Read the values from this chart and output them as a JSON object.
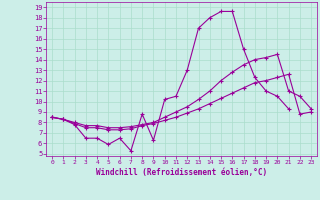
{
  "xlabel": "Windchill (Refroidissement éolien,°C)",
  "background_color": "#cceee8",
  "grid_color": "#aaddcc",
  "line_color": "#990099",
  "xlim": [
    -0.5,
    23.5
  ],
  "ylim": [
    4.8,
    19.5
  ],
  "xticks": [
    0,
    1,
    2,
    3,
    4,
    5,
    6,
    7,
    8,
    9,
    10,
    11,
    12,
    13,
    14,
    15,
    16,
    17,
    18,
    19,
    20,
    21,
    22,
    23
  ],
  "yticks": [
    5,
    6,
    7,
    8,
    9,
    10,
    11,
    12,
    13,
    14,
    15,
    16,
    17,
    18,
    19
  ],
  "line1_x": [
    0,
    1,
    2,
    3,
    4,
    5,
    6,
    7,
    8,
    9,
    10,
    11,
    12,
    13,
    14,
    15,
    16,
    17,
    18,
    19,
    20,
    21
  ],
  "line1_y": [
    8.5,
    8.3,
    7.8,
    6.5,
    6.5,
    5.9,
    6.5,
    5.3,
    8.8,
    6.3,
    10.2,
    10.5,
    13.0,
    17.0,
    18.0,
    18.6,
    18.6,
    15.0,
    12.3,
    11.0,
    10.5,
    9.3
  ],
  "line2_x": [
    0,
    1,
    2,
    3,
    4,
    5,
    6,
    7,
    8,
    9,
    10,
    11,
    12,
    13,
    14,
    15,
    16,
    17,
    18,
    19,
    20,
    21,
    22,
    23
  ],
  "line2_y": [
    8.5,
    8.3,
    8.0,
    7.7,
    7.7,
    7.5,
    7.5,
    7.6,
    7.8,
    8.0,
    8.5,
    9.0,
    9.5,
    10.2,
    11.0,
    12.0,
    12.8,
    13.5,
    14.0,
    14.2,
    14.5,
    11.0,
    10.5,
    9.3
  ],
  "line3_x": [
    0,
    1,
    2,
    3,
    4,
    5,
    6,
    7,
    8,
    9,
    10,
    11,
    12,
    13,
    14,
    15,
    16,
    17,
    18,
    19,
    20,
    21,
    22,
    23
  ],
  "line3_y": [
    8.5,
    8.3,
    7.9,
    7.5,
    7.5,
    7.3,
    7.3,
    7.4,
    7.7,
    7.9,
    8.2,
    8.5,
    8.9,
    9.3,
    9.8,
    10.3,
    10.8,
    11.3,
    11.8,
    12.0,
    12.3,
    12.6,
    8.8,
    9.0
  ]
}
